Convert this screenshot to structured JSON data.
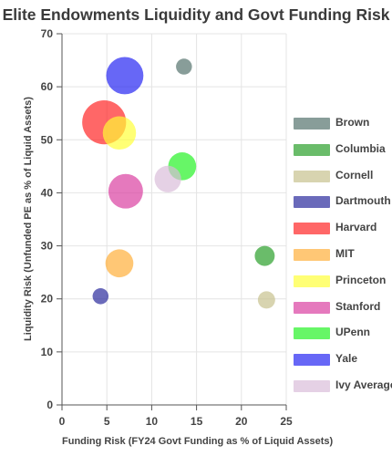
{
  "chart_data": {
    "type": "scatter",
    "title": "Elite Endowments Liquidity and Govt Funding Risk",
    "xlabel": "Funding Risk (FY24 Govt Funding as % of Liquid Assets)",
    "ylabel": "Liquidity Risk (Unfunded PE as % of Liquid Assets)",
    "xlim": [
      0,
      25
    ],
    "ylim": [
      0,
      70
    ],
    "x_ticks": [
      "0",
      "5",
      "10",
      "15",
      "20",
      "25"
    ],
    "y_ticks": [
      "0",
      "10",
      "20",
      "30",
      "40",
      "50",
      "60",
      "70"
    ],
    "grid": true,
    "legend_position": "right",
    "series": [
      {
        "name": "Brown",
        "x": 13.6,
        "y": 63.8,
        "size": 1.2,
        "color": "#4f6f69"
      },
      {
        "name": "Columbia",
        "x": 22.6,
        "y": 28.1,
        "size": 1.5,
        "color": "#249c24"
      },
      {
        "name": "Cornell",
        "x": 22.8,
        "y": 19.8,
        "size": 1.3,
        "color": "#c5c08a"
      },
      {
        "name": "Dartmouth",
        "x": 4.3,
        "y": 20.5,
        "size": 1.2,
        "color": "#23239a"
      },
      {
        "name": "Harvard",
        "x": 4.7,
        "y": 53.3,
        "size": 3.3,
        "color": "#ff1f1f"
      },
      {
        "name": "MIT",
        "x": 6.4,
        "y": 26.7,
        "size": 2.1,
        "color": "#ffad33"
      },
      {
        "name": "Princeton",
        "x": 6.4,
        "y": 51.3,
        "size": 2.5,
        "color": "#ffff33"
      },
      {
        "name": "Stanford",
        "x": 7.1,
        "y": 40.3,
        "size": 2.6,
        "color": "#d9399d"
      },
      {
        "name": "UPenn",
        "x": 13.4,
        "y": 45.0,
        "size": 2.1,
        "color": "#1ff21f"
      },
      {
        "name": "Yale",
        "x": 7.0,
        "y": 62.1,
        "size": 2.8,
        "color": "#1f1ff2"
      },
      {
        "name": "Ivy Average",
        "x": 11.8,
        "y": 42.6,
        "size": 2.0,
        "color": "#d9bbd9"
      }
    ]
  }
}
